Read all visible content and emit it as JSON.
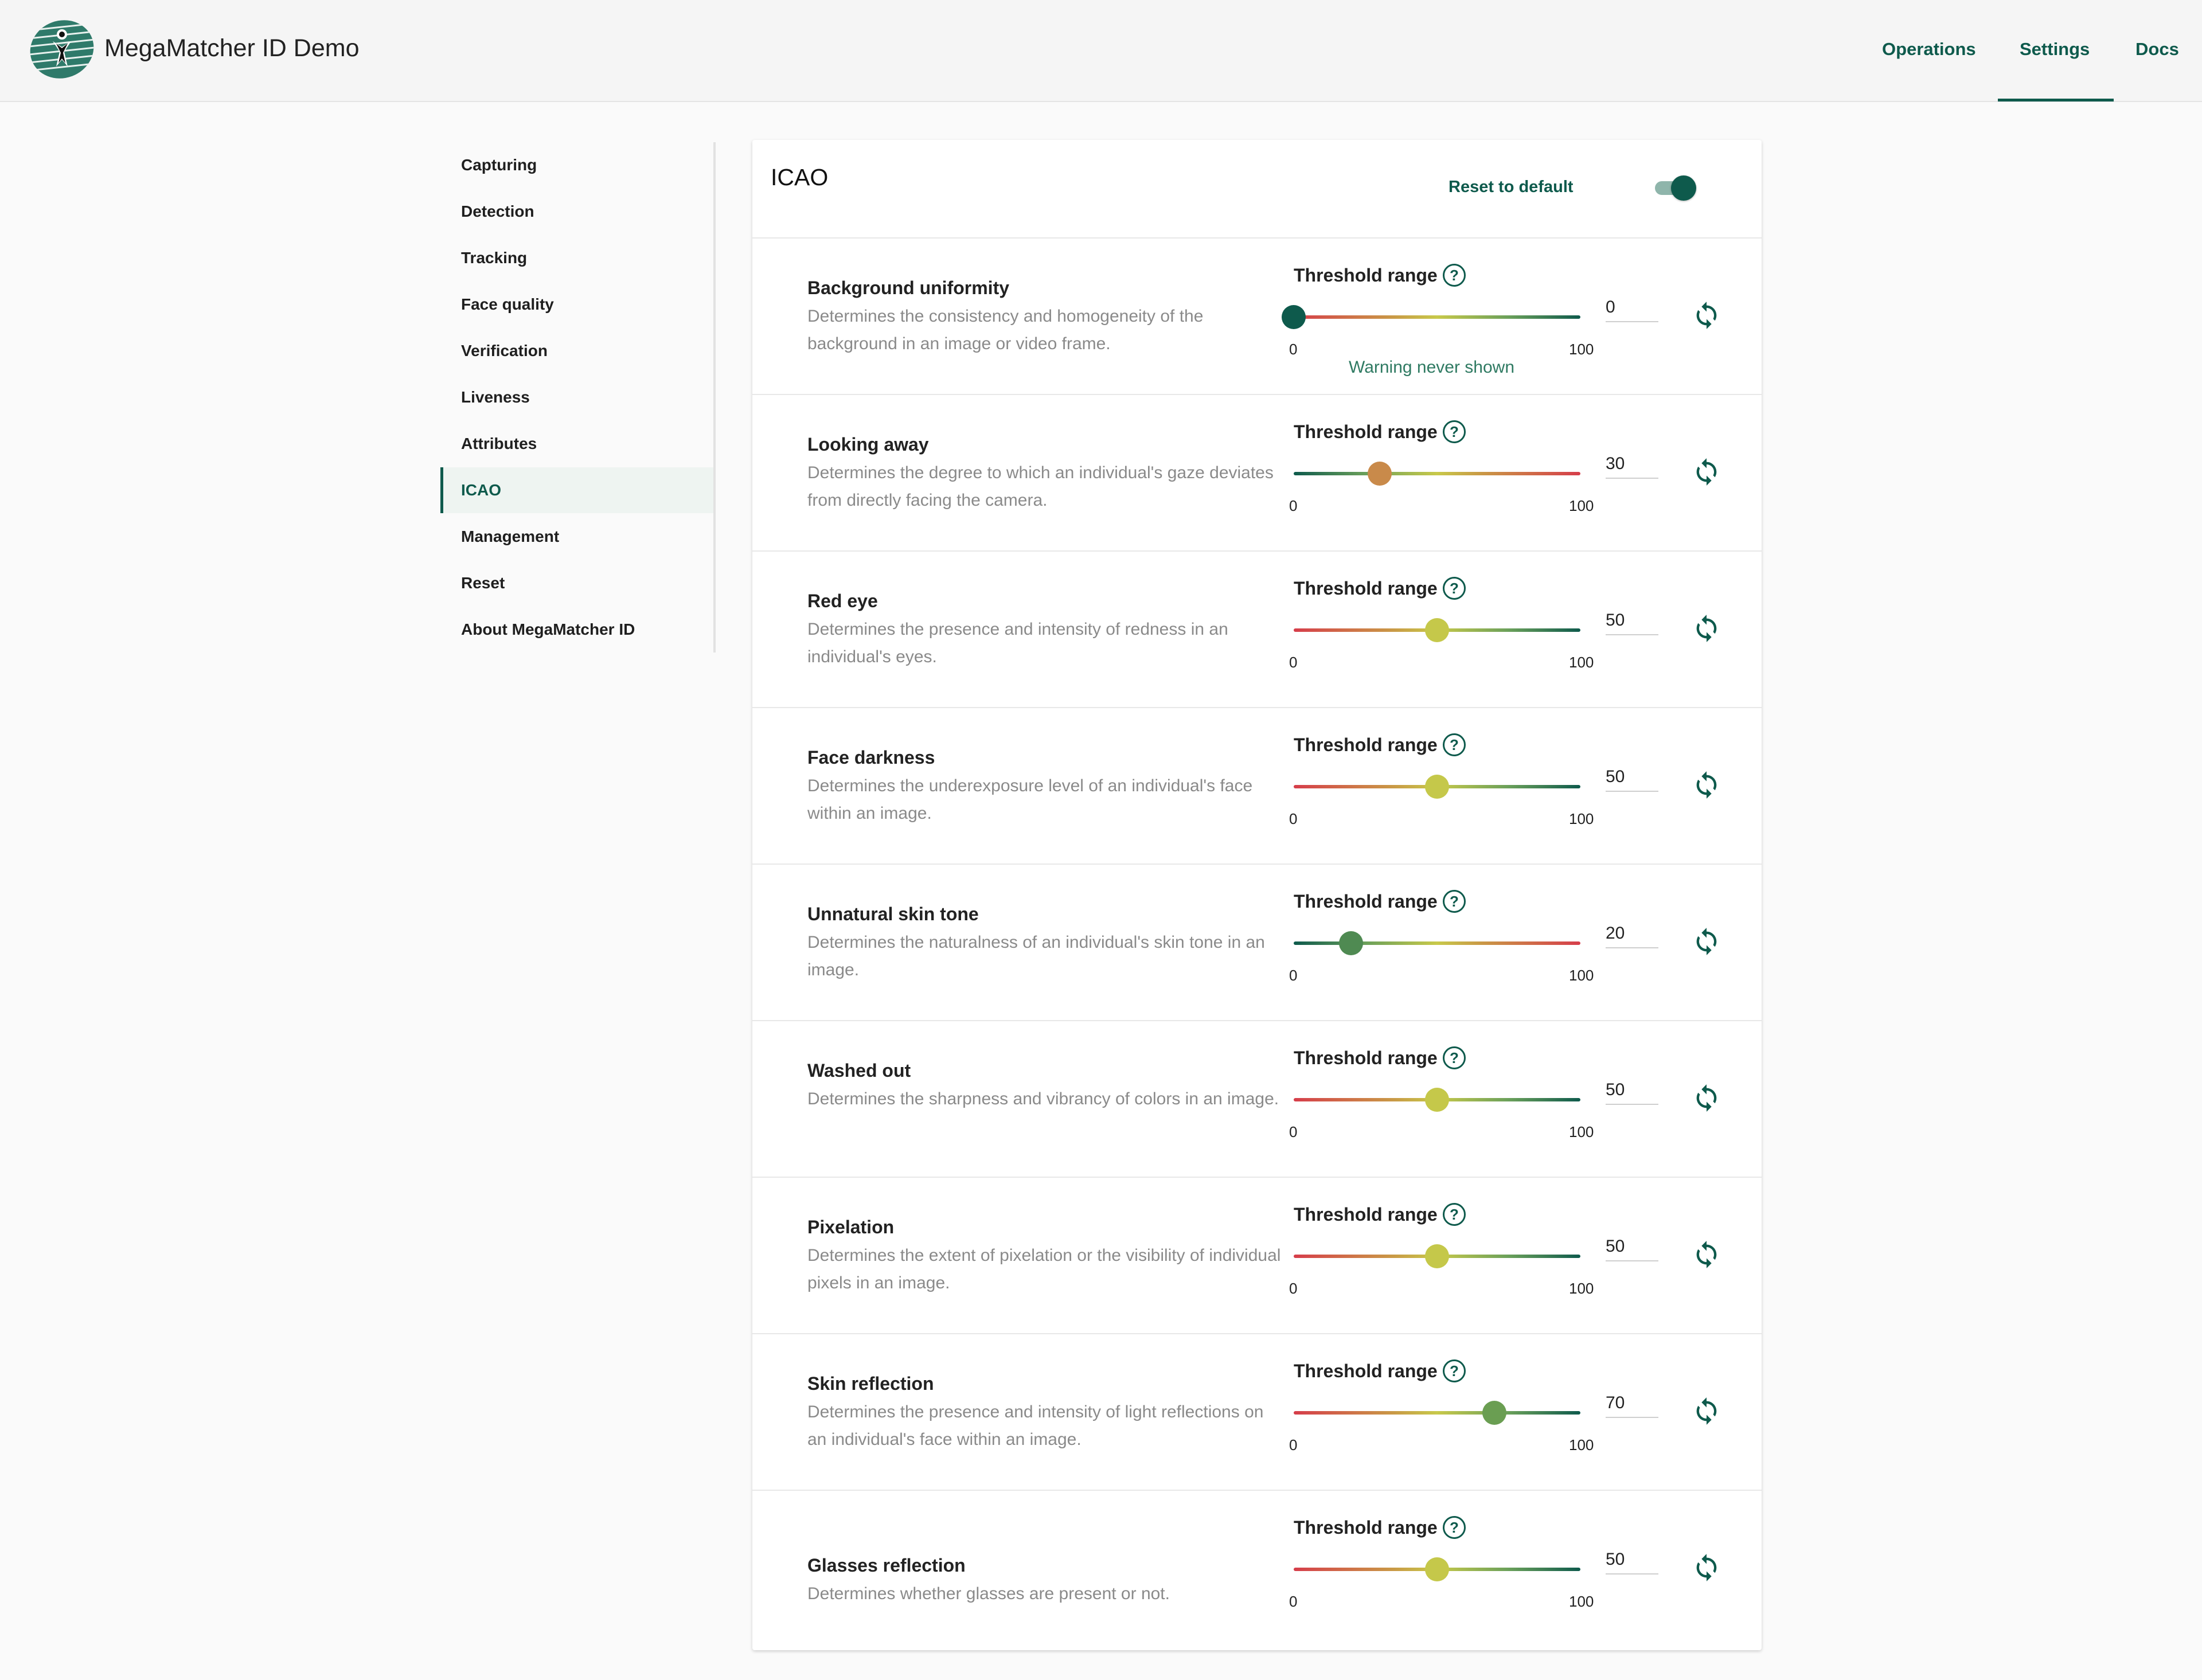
{
  "app": {
    "title": "MegaMatcher ID Demo",
    "accent_color": "#0e5a4c",
    "logo_icon": "fingerprint-person-logo"
  },
  "nav": {
    "items": [
      "Operations",
      "Settings",
      "Docs"
    ],
    "active": "Settings"
  },
  "sidebar": {
    "items": [
      "Capturing",
      "Detection",
      "Tracking",
      "Face quality",
      "Verification",
      "Liveness",
      "Attributes",
      "ICAO",
      "Management",
      "Reset",
      "About MegaMatcher ID"
    ],
    "active": "ICAO"
  },
  "panel": {
    "title": "ICAO",
    "reset_label": "Reset to default",
    "toggle_on": true
  },
  "thresholds": [
    {
      "title": "Background uniformity",
      "desc": "Determines the consistency and homogeneity of the background in an image or video frame.",
      "label": "Threshold range",
      "value": "0",
      "min": "0",
      "max": "100",
      "note": "Warning never shown",
      "thumb_color": "#0e5a4c",
      "gradient": "up"
    },
    {
      "title": "Looking away",
      "desc": "Determines the degree to which an individual's gaze deviates from directly facing the camera.",
      "label": "Threshold range",
      "value": "30",
      "min": "0",
      "max": "100",
      "note": "",
      "thumb_color": "#c98a4a",
      "gradient": "down"
    },
    {
      "title": "Red eye",
      "desc": "Determines the presence and intensity of redness in an individual's eyes.",
      "label": "Threshold range",
      "value": "50",
      "min": "0",
      "max": "100",
      "note": "",
      "thumb_color": "#c5c84a",
      "gradient": "up"
    },
    {
      "title": "Face darkness",
      "desc": "Determines the underexposure level of an individual's face within an image.",
      "label": "Threshold range",
      "value": "50",
      "min": "0",
      "max": "100",
      "note": "",
      "thumb_color": "#c5c84a",
      "gradient": "up"
    },
    {
      "title": "Unnatural skin tone",
      "desc": "Determines the naturalness of an individual's skin tone in an image.",
      "label": "Threshold range",
      "value": "20",
      "min": "0",
      "max": "100",
      "note": "",
      "thumb_color": "#4f8a52",
      "gradient": "down"
    },
    {
      "title": "Washed out",
      "desc": "Determines the sharpness and vibrancy of colors in an image.",
      "label": "Threshold range",
      "value": "50",
      "min": "0",
      "max": "100",
      "note": "",
      "thumb_color": "#c5c84a",
      "gradient": "up"
    },
    {
      "title": "Pixelation",
      "desc": "Determines the extent of pixelation or the visibility of individual pixels in an image.",
      "label": "Threshold range",
      "value": "50",
      "min": "0",
      "max": "100",
      "note": "",
      "thumb_color": "#c5c84a",
      "gradient": "up"
    },
    {
      "title": "Skin reflection",
      "desc": "Determines the presence and intensity of light reflections on an individual's face within an image.",
      "label": "Threshold range",
      "value": "70",
      "min": "0",
      "max": "100",
      "note": "",
      "thumb_color": "#6a9e52",
      "gradient": "up"
    },
    {
      "title": "Glasses reflection",
      "desc": "Determines whether glasses are present or not.",
      "label": "Threshold range",
      "value": "50",
      "min": "0",
      "max": "100",
      "note": "",
      "thumb_color": "#c5c84a",
      "gradient": "up"
    }
  ]
}
